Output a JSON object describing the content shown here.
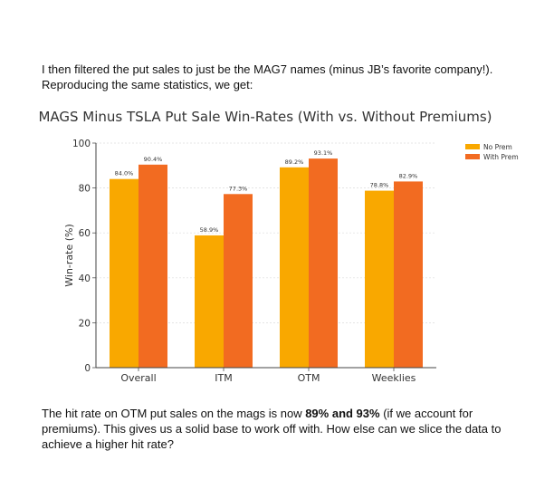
{
  "intro": {
    "line1": "I then filtered the put sales to just be the MAG7 names (minus JB’s favorite company!).",
    "line2": "Reproducing the same statistics, we get:"
  },
  "outro": {
    "part1": "The hit rate on OTM put sales on the mags is now ",
    "bold": "89% and 93%",
    "part2": " (if we account for premiums). This gives us a solid base to work off with. How else can we slice the data to achieve a higher hit rate?"
  },
  "chart_data": {
    "type": "bar",
    "title": "MAGS Minus TSLA Put Sale Win-Rates (With vs. Without Premiums)",
    "xlabel": "",
    "ylabel": "Win-rate (%)",
    "ylim": [
      0,
      100
    ],
    "yticks": [
      0,
      20,
      40,
      60,
      80,
      100
    ],
    "grid": true,
    "legend_position": "top-right",
    "categories": [
      "Overall",
      "ITM",
      "OTM",
      "Weeklies"
    ],
    "series": [
      {
        "name": "No Prem",
        "color": "#F9A800",
        "values": [
          84.0,
          58.9,
          89.2,
          78.8
        ],
        "labels": [
          "84.0%",
          "58.9%",
          "89.2%",
          "78.8%"
        ]
      },
      {
        "name": "With Prem",
        "color": "#F26B21",
        "values": [
          90.4,
          77.3,
          93.1,
          82.9
        ],
        "labels": [
          "90.4%",
          "77.3%",
          "93.1%",
          "82.9%"
        ]
      }
    ]
  }
}
